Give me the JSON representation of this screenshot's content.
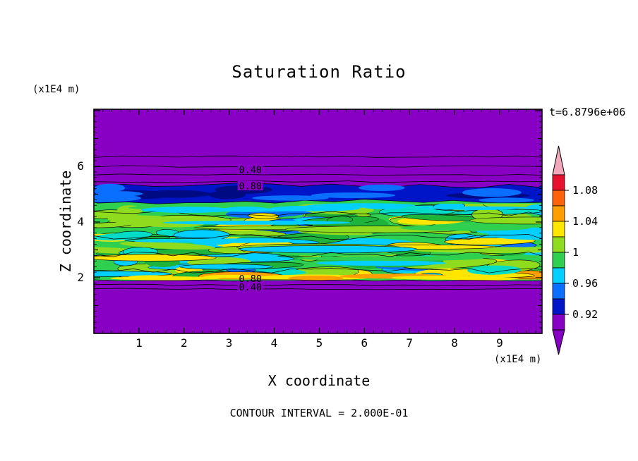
{
  "chart_data": {
    "type": "contour",
    "title": "Saturation Ratio",
    "time_label": "t=6.8796e+06",
    "contour_interval_label": "CONTOUR INTERVAL = 2.000E-01",
    "contour_interval": 0.2,
    "x_axis": {
      "title": "X coordinate",
      "unit": "(x1E4 m)",
      "range": [
        0,
        9.94
      ],
      "labeled_ticks": [
        1,
        2,
        3,
        4,
        5,
        6,
        7,
        8,
        9
      ],
      "minor_tick_step": 0.2
    },
    "z_axis": {
      "title": "Z coordinate",
      "unit": "(x1E4 m)",
      "range": [
        0,
        8.05
      ],
      "labeled_ticks": [
        2,
        4,
        6
      ],
      "minor_tick_step": 0.2
    },
    "colorbar": {
      "labeled_levels": [
        "1.08",
        "1.04",
        "1",
        "0.96",
        "0.92"
      ],
      "band_ranges_top_to_bottom": [
        [
          1.08,
          1.1
        ],
        [
          1.06,
          1.08
        ],
        [
          1.04,
          1.06
        ],
        [
          1.02,
          1.04
        ],
        [
          1.0,
          1.02
        ],
        [
          0.98,
          1.0
        ],
        [
          0.96,
          0.98
        ],
        [
          0.94,
          0.96
        ],
        [
          0.92,
          0.94
        ],
        [
          0.9,
          0.92
        ]
      ],
      "band_colors_top_to_bottom": [
        "#e8112d",
        "#ff6309",
        "#ff9e00",
        "#ffe600",
        "#8fdc1e",
        "#2fd050",
        "#00cfff",
        "#0a6eff",
        "#0014c8",
        "#8800c4"
      ],
      "over_color": "#f2a7ba",
      "under_color": "#8800c4"
    },
    "field": {
      "background_color": "#8800c4",
      "regions": [
        {
          "name": "upper unsaturated zone",
          "z_range": [
            5.32,
            8.05
          ],
          "saturation_ratio": "< 0.90",
          "color": "#8800c4"
        },
        {
          "name": "low saturation strip",
          "z_range": [
            4.72,
            5.32
          ],
          "saturation_ratio": "0.92-0.96",
          "color": "#0014c8"
        },
        {
          "name": "saturated mottled band",
          "z_range": [
            1.9,
            4.72
          ],
          "saturation_ratio": "0.96-1.06",
          "color": "#2fd050"
        },
        {
          "name": "lower unsaturated zone",
          "z_range": [
            0,
            1.9
          ],
          "saturation_ratio": "< 0.90",
          "color": "#8800c4"
        }
      ],
      "labeled_contours": [
        {
          "label": "0.40",
          "x": 3.47,
          "z": 5.87
        },
        {
          "label": "0.80",
          "x": 3.47,
          "z": 5.29
        },
        {
          "label": "0.80",
          "x": 3.47,
          "z": 1.96
        },
        {
          "label": "0.40",
          "x": 3.47,
          "z": 1.66
        }
      ],
      "unlabeled_contour_lines_z": [
        6.35,
        6.0,
        5.7,
        5.45,
        1.9,
        1.74,
        1.6
      ]
    },
    "palette": {
      "purple": "#8800c4",
      "dark_blue": "#0014c8",
      "navy": "#000a82",
      "blue": "#0a6eff",
      "cyan": "#00cfff",
      "turquoise": "#00dcc8",
      "green": "#2fd050",
      "dark_green": "#1eb43c",
      "yellow_green": "#8fdc1e",
      "yellow": "#ffe600",
      "orange": "#ff9e00",
      "red": "#e8112d",
      "pink": "#f2a7ba"
    }
  }
}
